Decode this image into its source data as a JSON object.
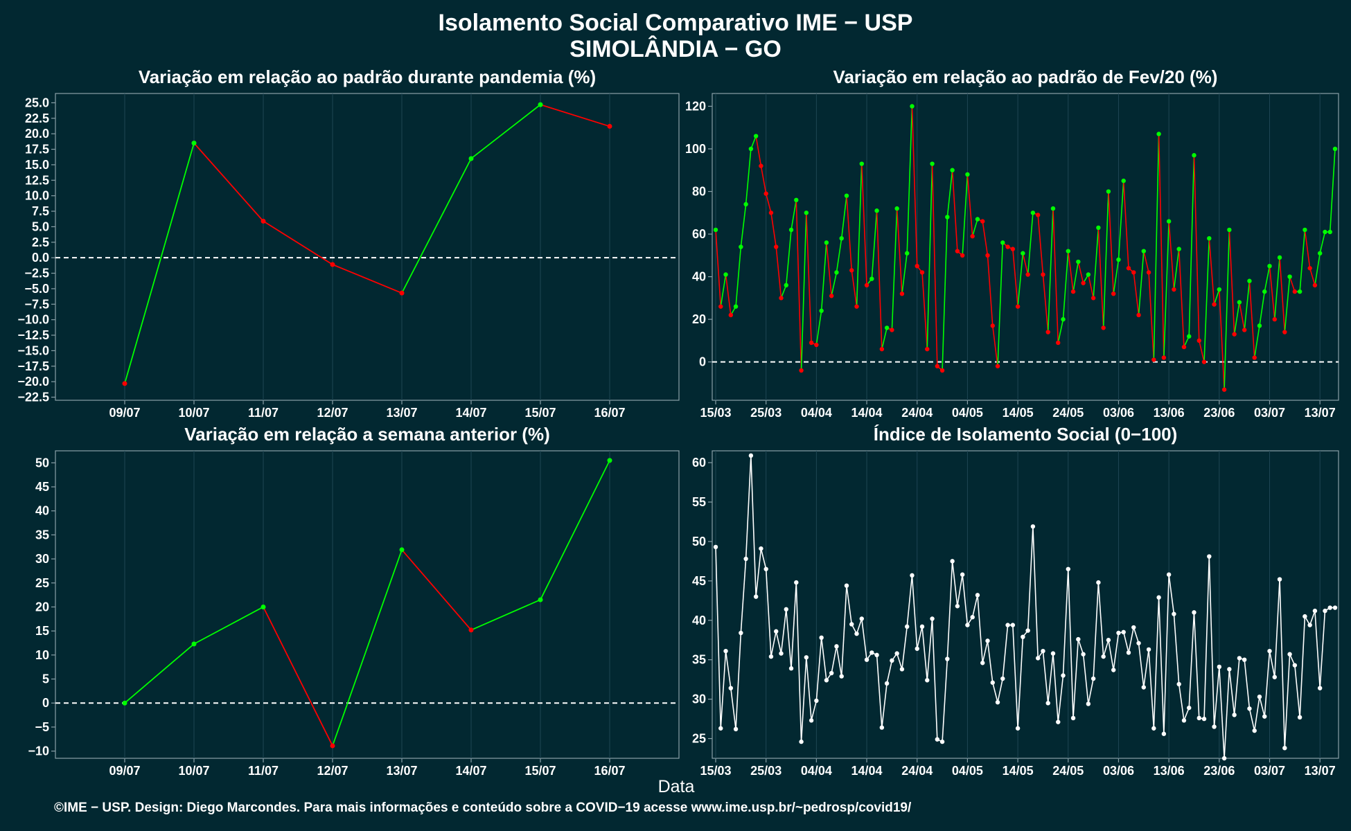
{
  "title_line1": "Isolamento Social Comparativo IME − USP",
  "title_line2": "SIMOLÂNDIA − GO",
  "xlabel": "Data",
  "footer": "©IME − USP. Design: Diego Marcondes. Para mais informações e conteúdo sobre a COVID−19 acesse www.ime.usp.br/~pedrosp/covid19/",
  "colors": {
    "background": "#022831",
    "positive": "#00ff00",
    "negative": "#ff0000",
    "index": "#ffffff",
    "grid": "#1f4654",
    "axis": "#8aa0a8"
  },
  "chart_data": [
    {
      "type": "line",
      "title": "Variação em relação ao padrão durante pandemia (%)",
      "categories": [
        "09/07",
        "10/07",
        "11/07",
        "12/07",
        "13/07",
        "14/07",
        "15/07",
        "16/07"
      ],
      "values": [
        -20.3,
        18.5,
        5.9,
        -1.1,
        -5.7,
        16.0,
        24.7,
        21.2
      ],
      "ylim": [
        -23,
        26.5
      ],
      "yticks": [
        -22.5,
        -20,
        -17.5,
        -15,
        -12.5,
        -10,
        -7.5,
        -5,
        -2.5,
        0,
        2.5,
        5,
        7.5,
        10,
        12.5,
        15,
        17.5,
        20,
        22.5,
        25
      ],
      "ytick_decimals": 1,
      "colored_by_change": true,
      "reference_line": 0
    },
    {
      "type": "line",
      "title": "Variação em relação ao padrão de Fev/20 (%)",
      "x_start": "2020-03-15",
      "xtick_labels": [
        "15/03",
        "25/03",
        "04/04",
        "14/04",
        "24/04",
        "04/05",
        "14/05",
        "24/05",
        "03/06",
        "13/06",
        "23/06",
        "03/07",
        "13/07"
      ],
      "values": [
        62,
        26,
        41,
        22,
        26,
        54,
        74,
        100,
        106,
        92,
        79,
        70,
        54,
        30,
        36,
        62,
        76,
        -4,
        70,
        9,
        8,
        24,
        56,
        31,
        42,
        58,
        78,
        43,
        26,
        93,
        36,
        39,
        71,
        6,
        16,
        15,
        72,
        32,
        51,
        120,
        45,
        42,
        6,
        93,
        -2,
        -4,
        68,
        90,
        52,
        50,
        88,
        59,
        67,
        66,
        50,
        17,
        -2,
        56,
        54,
        53,
        26,
        51,
        41,
        70,
        69,
        41,
        14,
        72,
        9,
        20,
        52,
        33,
        47,
        37,
        41,
        30,
        63,
        16,
        80,
        32,
        48,
        85,
        44,
        42,
        22,
        52,
        42,
        1,
        107,
        2,
        66,
        34,
        53,
        7,
        12,
        97,
        10,
        0,
        58,
        27,
        34,
        -13,
        62,
        13,
        28,
        15,
        38,
        2,
        17,
        33,
        45,
        20,
        49,
        14,
        40,
        33,
        33,
        62,
        44,
        36,
        51,
        61,
        61,
        100
      ],
      "ylim": [
        -18,
        126
      ],
      "yticks": [
        0,
        20,
        40,
        60,
        80,
        100,
        120
      ],
      "colored_by_change": true,
      "reference_line": 0
    },
    {
      "type": "line",
      "title": "Variação em relação a semana anterior (%)",
      "categories": [
        "09/07",
        "10/07",
        "11/07",
        "12/07",
        "13/07",
        "14/07",
        "15/07",
        "16/07"
      ],
      "values": [
        0.0,
        12.3,
        20.0,
        -8.9,
        31.9,
        15.2,
        21.5,
        50.5
      ],
      "ylim": [
        -11.5,
        52.5
      ],
      "yticks": [
        -10,
        -5,
        0,
        5,
        10,
        15,
        20,
        25,
        30,
        35,
        40,
        45,
        50
      ],
      "ytick_decimals": 0,
      "colored_by_change": true,
      "reference_line": 0
    },
    {
      "type": "line",
      "title": "Índice de Isolamento Social (0−100)",
      "x_start": "2020-03-15",
      "xtick_labels": [
        "15/03",
        "25/03",
        "04/04",
        "14/04",
        "24/04",
        "04/05",
        "14/05",
        "24/05",
        "03/06",
        "13/06",
        "23/06",
        "03/07",
        "13/07"
      ],
      "values": [
        49.3,
        26.3,
        36.1,
        31.4,
        26.2,
        38.4,
        47.8,
        60.9,
        43.0,
        49.1,
        46.5,
        35.4,
        38.6,
        35.8,
        41.4,
        33.9,
        44.8,
        24.6,
        35.3,
        27.3,
        29.8,
        37.8,
        32.4,
        33.3,
        36.7,
        32.9,
        44.4,
        39.5,
        38.3,
        40.2,
        35.0,
        35.9,
        35.6,
        26.4,
        32.0,
        34.9,
        35.8,
        33.8,
        39.2,
        45.7,
        36.4,
        39.2,
        32.4,
        40.2,
        24.9,
        24.6,
        35.1,
        47.5,
        41.8,
        45.8,
        39.4,
        40.4,
        43.2,
        34.6,
        37.4,
        32.1,
        29.6,
        32.6,
        39.4,
        39.4,
        26.3,
        37.9,
        38.7,
        51.9,
        35.2,
        36.1,
        29.5,
        35.8,
        27.1,
        33.0,
        46.5,
        27.6,
        37.6,
        35.7,
        29.4,
        32.6,
        44.8,
        35.4,
        37.5,
        33.7,
        38.4,
        38.5,
        35.9,
        39.1,
        37.1,
        31.5,
        36.3,
        26.3,
        42.9,
        25.6,
        45.8,
        40.8,
        31.9,
        27.3,
        28.9,
        41.0,
        27.6,
        27.5,
        48.1,
        26.5,
        34.1,
        22.5,
        33.8,
        28.0,
        35.2,
        35.0,
        28.8,
        26.0,
        30.3,
        27.8,
        36.1,
        32.8,
        45.2,
        23.8,
        35.7,
        34.3,
        27.7,
        40.5,
        39.4,
        41.2,
        31.4,
        41.2,
        41.6,
        41.6
      ],
      "ylim": [
        22.5,
        61.5
      ],
      "yticks": [
        25,
        30,
        35,
        40,
        45,
        50,
        55,
        60
      ],
      "ytick_decimals": 0,
      "colored_by_change": false,
      "reference_line": null
    }
  ]
}
